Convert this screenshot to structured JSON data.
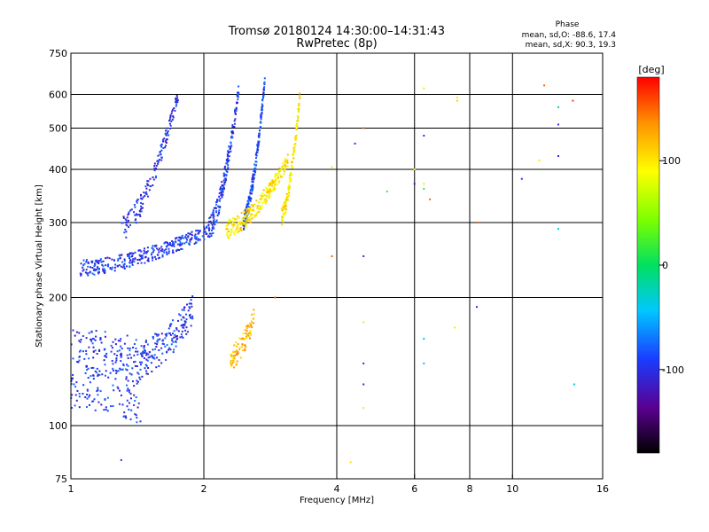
{
  "chart_data": {
    "type": "scatter",
    "title": "Tromsø 20180124 14:30:00–14:31:43",
    "subtitle": "RwPretec (8p)",
    "xlabel": "Frequency [MHz]",
    "ylabel": "Stationary phase Virtual Height [km]",
    "x_scale": "log",
    "y_scale": "log",
    "xlim": [
      1,
      16
    ],
    "ylim": [
      75,
      750
    ],
    "x_ticks": [
      1,
      2,
      4,
      6,
      8,
      10,
      16
    ],
    "y_ticks": [
      75,
      100,
      200,
      300,
      400,
      500,
      600,
      750
    ],
    "x_gridlines": [
      2,
      4,
      6,
      8,
      10
    ],
    "y_gridlines": [
      100,
      200,
      300,
      400,
      500,
      600
    ],
    "grid": true,
    "stats": {
      "heading": "Phase",
      "line_o": "mean, sd,O: -88.6, 17.4",
      "line_x": "mean, sd,X:  90.3, 19.3"
    },
    "colorbar": {
      "label": "[deg]",
      "ticks": [
        100,
        0,
        -100
      ],
      "range": [
        -180,
        180
      ],
      "colormap": "rainbow (black→purple→blue→cyan→green→yellow→orange→red)"
    },
    "traces": [
      {
        "name": "",
        "phase": -95,
        "freq": [
          1.0,
          1.45
        ],
        "h": [
          140,
          130
        ],
        "spread": 60,
        "n": 260
      },
      {
        "name": "",
        "phase": -95,
        "freq": [
          1.45,
          1.9
        ],
        "h": [
          145,
          190
        ],
        "spread": 30,
        "n": 160
      },
      {
        "name": "",
        "phase": -95,
        "freq": [
          1.05,
          2.1
        ],
        "h": [
          235,
          290
        ],
        "spread": 20,
        "n": 320
      },
      {
        "name": "",
        "phase": -100,
        "freq": [
          1.3,
          1.75
        ],
        "h": [
          290,
          600
        ],
        "spread": 40,
        "n": 150
      },
      {
        "name": "",
        "phase": -95,
        "freq": [
          2.05,
          2.4
        ],
        "h": [
          290,
          620
        ],
        "spread": 40,
        "n": 170
      },
      {
        "name": "",
        "phase": -90,
        "freq": [
          2.45,
          2.75
        ],
        "h": [
          300,
          650
        ],
        "spread": 30,
        "n": 190
      },
      {
        "name": "",
        "phase": 100,
        "freq": [
          2.25,
          3.1
        ],
        "h": [
          290,
          420
        ],
        "spread": 30,
        "n": 260
      },
      {
        "name": "",
        "phase": 95,
        "freq": [
          3.0,
          3.3
        ],
        "h": [
          310,
          600
        ],
        "spread": 30,
        "n": 140
      },
      {
        "name": "",
        "phase": 120,
        "freq": [
          2.3,
          2.6
        ],
        "h": [
          145,
          180
        ],
        "spread": 20,
        "n": 90
      }
    ],
    "scattered_points": [
      {
        "f": 1.3,
        "h": 83,
        "p": -100
      },
      {
        "f": 4.3,
        "h": 82,
        "p": 100
      },
      {
        "f": 3.9,
        "h": 250,
        "p": 150
      },
      {
        "f": 4.6,
        "h": 250,
        "p": -100
      },
      {
        "f": 4.6,
        "h": 500,
        "p": 150
      },
      {
        "f": 4.4,
        "h": 460,
        "p": -100
      },
      {
        "f": 4.6,
        "h": 175,
        "p": 100
      },
      {
        "f": 4.6,
        "h": 140,
        "p": -100
      },
      {
        "f": 4.6,
        "h": 125,
        "p": -100
      },
      {
        "f": 4.6,
        "h": 110,
        "p": 100
      },
      {
        "f": 6.0,
        "h": 370,
        "p": -120
      },
      {
        "f": 6.0,
        "h": 400,
        "p": 100
      },
      {
        "f": 6.3,
        "h": 480,
        "p": -100
      },
      {
        "f": 6.3,
        "h": 370,
        "p": 100
      },
      {
        "f": 6.3,
        "h": 360,
        "p": 20
      },
      {
        "f": 6.3,
        "h": 620,
        "p": 100
      },
      {
        "f": 6.5,
        "h": 340,
        "p": 150
      },
      {
        "f": 6.3,
        "h": 160,
        "p": -40
      },
      {
        "f": 6.3,
        "h": 140,
        "p": -40
      },
      {
        "f": 7.5,
        "h": 590,
        "p": 100
      },
      {
        "f": 7.5,
        "h": 580,
        "p": 110
      },
      {
        "f": 7.4,
        "h": 170,
        "p": 100
      },
      {
        "f": 8.3,
        "h": 190,
        "p": -100
      },
      {
        "f": 8.4,
        "h": 300,
        "p": 150
      },
      {
        "f": 10.5,
        "h": 380,
        "p": -100
      },
      {
        "f": 11.5,
        "h": 420,
        "p": 100
      },
      {
        "f": 11.8,
        "h": 630,
        "p": 150
      },
      {
        "f": 12.7,
        "h": 510,
        "p": -100
      },
      {
        "f": 12.7,
        "h": 560,
        "p": -20
      },
      {
        "f": 12.7,
        "h": 430,
        "p": -100
      },
      {
        "f": 12.7,
        "h": 290,
        "p": -40
      },
      {
        "f": 13.7,
        "h": 580,
        "p": 160
      },
      {
        "f": 13.8,
        "h": 125,
        "p": -40
      },
      {
        "f": 5.2,
        "h": 355,
        "p": 20
      },
      {
        "f": 3.9,
        "h": 405,
        "p": 100
      },
      {
        "f": 2.9,
        "h": 200,
        "p": 150
      }
    ]
  }
}
